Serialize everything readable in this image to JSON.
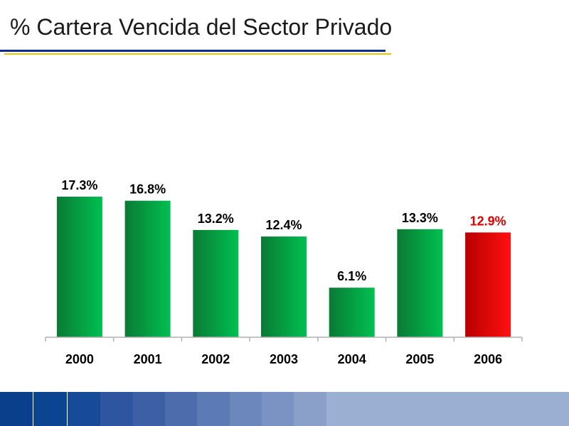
{
  "title": "% Cartera Vencida del Sector Privado",
  "colors": {
    "green_dark": "#0a7a35",
    "green_light": "#00c050",
    "red_dark": "#b80000",
    "red_light": "#ff1010",
    "highlight_text": "#e00000",
    "axis": "#b0b0b0",
    "rule_blue": "#0f2a8c",
    "rule_yellow": "#f3c300"
  },
  "chart_data": {
    "type": "bar",
    "title": "% Cartera Vencida del Sector Privado",
    "categories": [
      "2000",
      "2001",
      "2002",
      "2003",
      "2004",
      "2005",
      "2006"
    ],
    "values": [
      17.3,
      16.8,
      13.2,
      12.4,
      6.1,
      13.3,
      12.9
    ],
    "data_labels": [
      "17.3%",
      "16.8%",
      "13.2%",
      "12.4%",
      "6.1%",
      "13.3%",
      "12.9%"
    ],
    "highlight_index": 6,
    "ylim": [
      0,
      17.3
    ],
    "grid": false,
    "legend": "none",
    "xlabel": "",
    "ylabel": ""
  },
  "footer_colors": [
    "#0a3f8c",
    "#0b4491",
    "#174a98",
    "#2d55a0",
    "#3c5fa6",
    "#4d6cac",
    "#5c7ab4",
    "#6c87bb",
    "#7b93c2",
    "#8aa0c9",
    "#9aafd1"
  ]
}
